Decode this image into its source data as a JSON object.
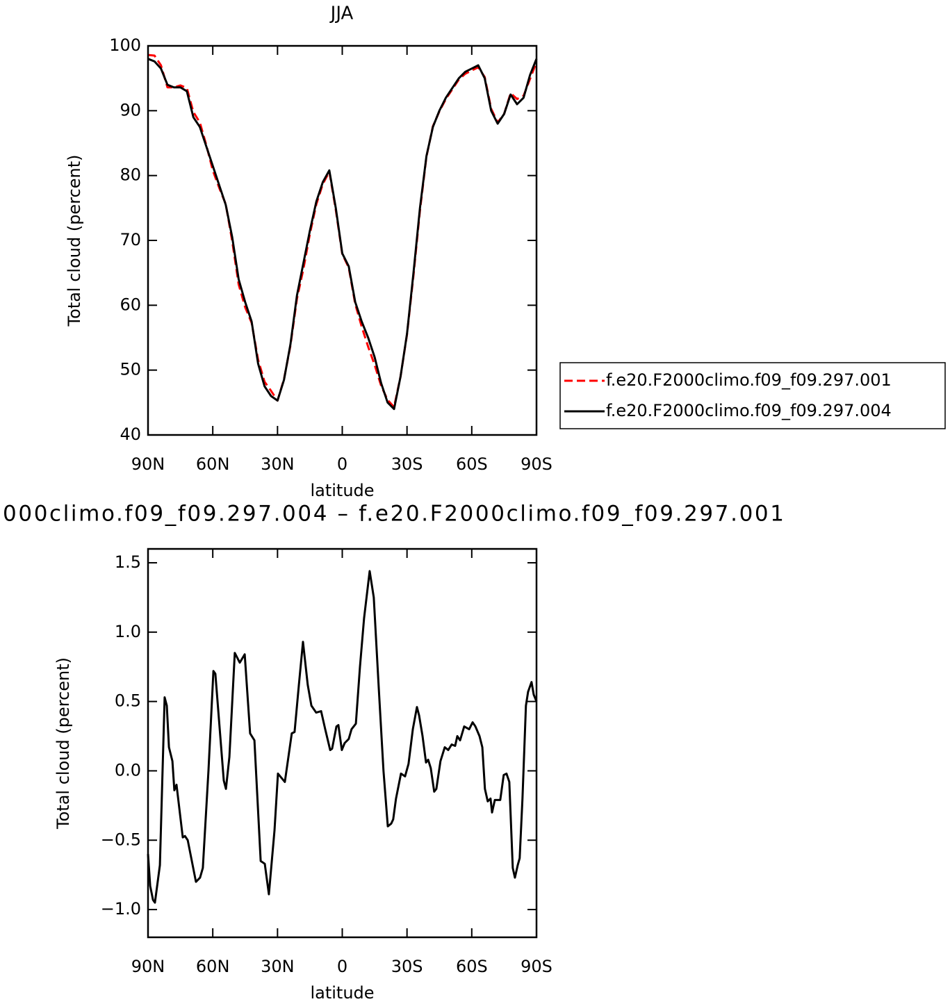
{
  "chart_data": [
    {
      "type": "line",
      "title": "JJA",
      "xlabel": "latitude",
      "ylabel": "Total cloud (percent)",
      "x": [
        90,
        87,
        84,
        81,
        78,
        75,
        72,
        69,
        66,
        63,
        60,
        57,
        54,
        51,
        48,
        45,
        42,
        39,
        36,
        33,
        30,
        27,
        24,
        21,
        18,
        15,
        12,
        9,
        6,
        3,
        0,
        -3,
        -6,
        -9,
        -12,
        -15,
        -18,
        -21,
        -24,
        -27,
        -30,
        -33,
        -36,
        -39,
        -42,
        -45,
        -48,
        -51,
        -54,
        -57,
        -60,
        -63,
        -66,
        -69,
        -72,
        -75,
        -78,
        -81,
        -84,
        -87,
        -90
      ],
      "series": [
        {
          "name": "f.e20.F2000climo.f09_f09.297.001",
          "color": "#ff0000",
          "dash": true,
          "values": [
            98.6,
            98.5,
            97.0,
            93.6,
            93.6,
            93.9,
            93.5,
            89.8,
            88.2,
            84.7,
            80.8,
            78.1,
            75.6,
            69.9,
            63.2,
            59.7,
            57.3,
            51.6,
            48.2,
            46.8,
            45.3,
            48.6,
            53.8,
            61.0,
            65.6,
            71.0,
            75.6,
            78.7,
            80.6,
            74.7,
            67.9,
            65.8,
            60.2,
            56.7,
            53.6,
            50.8,
            47.6,
            45.4,
            44.3,
            49.0,
            55.5,
            64.6,
            74.6,
            82.9,
            87.6,
            89.9,
            91.8,
            93.3,
            94.8,
            95.7,
            96.2,
            96.7,
            95.2,
            90.3,
            88.2,
            89.5,
            92.7,
            91.8,
            92.3,
            94.9,
            97.5
          ]
        },
        {
          "name": "f.e20.F2000climo.f09_f09.297.004",
          "color": "#000000",
          "dash": false,
          "values": [
            98.0,
            97.6,
            96.5,
            94.0,
            93.6,
            93.6,
            93.0,
            89.0,
            87.5,
            84.5,
            81.5,
            78.5,
            75.5,
            70.5,
            64.0,
            60.5,
            57.5,
            51.0,
            47.5,
            46.0,
            45.3,
            48.5,
            54.0,
            61.5,
            66.5,
            71.5,
            76.0,
            79.0,
            80.8,
            75.0,
            68.0,
            66.0,
            60.5,
            57.5,
            55.0,
            52.0,
            48.0,
            45.0,
            44.0,
            49.0,
            55.6,
            65.0,
            75.0,
            83.0,
            87.5,
            90.0,
            92.0,
            93.5,
            95.0,
            96.0,
            96.5,
            97.0,
            95.0,
            90.0,
            88.0,
            89.5,
            92.5,
            91.0,
            92.0,
            95.5,
            98.0
          ]
        }
      ],
      "xlim": [
        90,
        -90
      ],
      "xticks": [
        {
          "value": 90,
          "label": "90N"
        },
        {
          "value": 60,
          "label": "60N"
        },
        {
          "value": 30,
          "label": "30N"
        },
        0,
        {
          "value": -30,
          "label": "30S"
        },
        {
          "value": -60,
          "label": "60S"
        },
        {
          "value": -90,
          "label": "90S"
        }
      ],
      "ylim": [
        40,
        100
      ],
      "yticks": [
        40,
        50,
        60,
        70,
        80,
        90,
        100
      ],
      "grid": false,
      "legend": "right"
    },
    {
      "type": "line",
      "title": "000climo.f09_f09.297.004 – f.e20.F2000climo.f09_f09.297.001",
      "xlabel": "latitude",
      "ylabel": "Total cloud (percent)",
      "x": [
        90,
        89,
        87.7,
        86.8,
        84.5,
        82.3,
        81.3,
        80.3,
        78.7,
        77.8,
        76.8,
        73.9,
        72.9,
        71.6,
        67.8,
        65.9,
        64.6,
        62,
        59.7,
        58.8,
        54.9,
        53.9,
        52.3,
        49.8,
        47.5,
        45.2,
        42.7,
        40.7,
        37.8,
        35.9,
        34,
        31.4,
        29.8,
        26.6,
        23.4,
        22.1,
        20.1,
        18.2,
        16,
        14.3,
        12.1,
        9.8,
        7.9,
        5.6,
        4.7,
        2.7,
        1.8,
        0.2,
        -1.1,
        -3,
        -4.3,
        -6.3,
        -8.2,
        -10.1,
        -12.7,
        -14.6,
        -16.9,
        -19.1,
        -21.1,
        -22.7,
        -23.6,
        -24.9,
        -27.2,
        -29.1,
        -30.7,
        -32.7,
        -34.6,
        -35.6,
        -37.2,
        -38.8,
        -39.8,
        -41,
        -42.6,
        -43.6,
        -45.5,
        -47.5,
        -49.1,
        -50.7,
        -52.3,
        -53.3,
        -54.6,
        -56.5,
        -58.8,
        -60.4,
        -61.7,
        -63.6,
        -64.9,
        -66.1,
        -67.4,
        -68.7,
        -69.4,
        -70.7,
        -72,
        -73.2,
        -74.8,
        -76.1,
        -77.4,
        -79,
        -80,
        -81.3,
        -82.2,
        -83.5,
        -85.1,
        -86.1,
        -87.7,
        -88.7,
        -90
      ],
      "series": [
        {
          "color": "#000000",
          "dash": false,
          "values": [
            -0.6,
            -0.83,
            -0.93,
            -0.95,
            -0.68,
            0.53,
            0.47,
            0.17,
            0.07,
            -0.14,
            -0.1,
            -0.48,
            -0.47,
            -0.5,
            -0.8,
            -0.77,
            -0.7,
            0,
            0.72,
            0.7,
            -0.07,
            -0.13,
            0.1,
            0.85,
            0.78,
            0.84,
            0.27,
            0.22,
            -0.65,
            -0.67,
            -0.89,
            -0.43,
            -0.02,
            -0.08,
            0.27,
            0.28,
            0.62,
            0.93,
            0.62,
            0.47,
            0.42,
            0.43,
            0.3,
            0.15,
            0.16,
            0.32,
            0.33,
            0.15,
            0.2,
            0.23,
            0.3,
            0.34,
            0.75,
            1.1,
            1.44,
            1.25,
            0.6,
            0,
            -0.4,
            -0.38,
            -0.35,
            -0.2,
            -0.02,
            -0.04,
            0.05,
            0.3,
            0.46,
            0.4,
            0.25,
            0.06,
            0.08,
            0.02,
            -0.15,
            -0.13,
            0.07,
            0.17,
            0.15,
            0.19,
            0.18,
            0.25,
            0.22,
            0.32,
            0.3,
            0.35,
            0.32,
            0.25,
            0.17,
            -0.13,
            -0.22,
            -0.2,
            -0.3,
            -0.21,
            -0.21,
            -0.21,
            -0.03,
            -0.02,
            -0.08,
            -0.7,
            -0.77,
            -0.68,
            -0.63,
            -0.2,
            0.47,
            0.57,
            0.64,
            0.55,
            0.5
          ]
        }
      ],
      "xlim": [
        90,
        -90
      ],
      "xticks": [
        {
          "value": 90,
          "label": "90N"
        },
        {
          "value": 60,
          "label": "60N"
        },
        {
          "value": 30,
          "label": "30N"
        },
        0,
        {
          "value": -30,
          "label": "30S"
        },
        {
          "value": -60,
          "label": "60S"
        },
        {
          "value": -90,
          "label": "90S"
        }
      ],
      "ylim": [
        -1.2,
        1.6
      ],
      "yticks": [
        {
          "value": -1.0,
          "label": "−1.0"
        },
        {
          "value": -0.5,
          "label": "−0.5"
        },
        {
          "value": 0.0,
          "label": "0.0"
        },
        0.5,
        {
          "value": 1.0,
          "label": "1.0"
        },
        1.5
      ],
      "grid": false
    }
  ]
}
